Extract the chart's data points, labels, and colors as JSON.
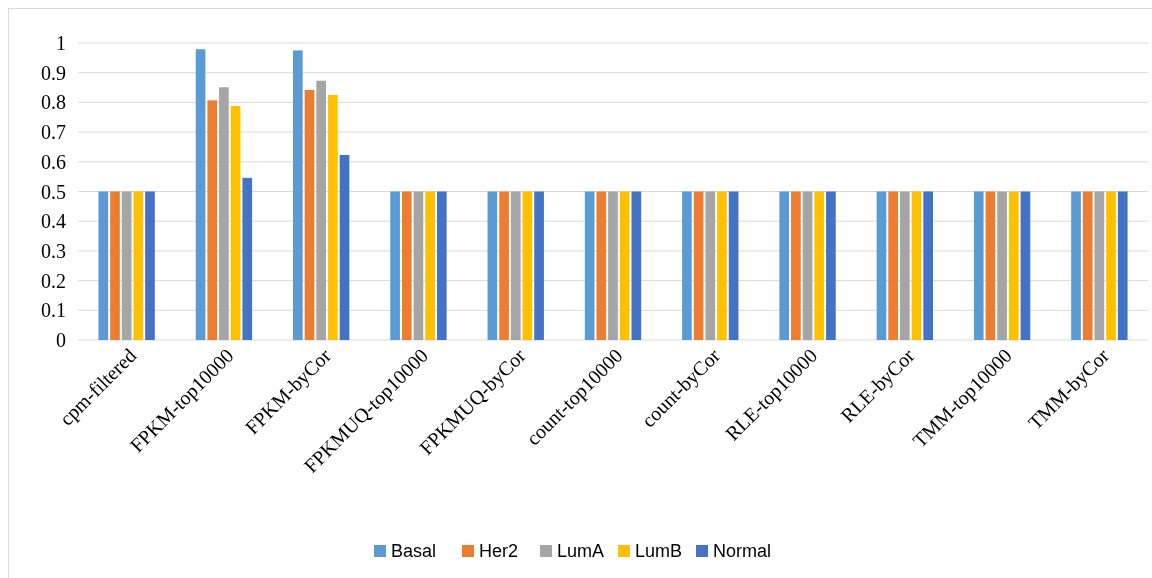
{
  "chart_data": {
    "type": "bar",
    "categories": [
      "cpm-filtered",
      "FPKM-top10000",
      "FPKM-byCor",
      "FPKMUQ-top10000",
      "FPKMUQ-byCor",
      "count-top10000",
      "count-byCor",
      "RLE-top10000",
      "RLE-byCor",
      "TMM-top10000",
      "TMM-byCor"
    ],
    "series": [
      {
        "name": "Basal",
        "color": "#5b9bd5",
        "values": [
          0.5,
          0.979,
          0.975,
          0.5,
          0.5,
          0.5,
          0.5,
          0.5,
          0.5,
          0.5,
          0.5
        ]
      },
      {
        "name": "Her2",
        "color": "#ed7d31",
        "values": [
          0.5,
          0.807,
          0.842,
          0.5,
          0.5,
          0.5,
          0.5,
          0.5,
          0.5,
          0.5,
          0.5
        ]
      },
      {
        "name": "LumA",
        "color": "#a5a5a5",
        "values": [
          0.5,
          0.851,
          0.873,
          0.5,
          0.5,
          0.5,
          0.5,
          0.5,
          0.5,
          0.5,
          0.5
        ]
      },
      {
        "name": "LumB",
        "color": "#ffc000",
        "values": [
          0.5,
          0.788,
          0.825,
          0.5,
          0.5,
          0.5,
          0.5,
          0.5,
          0.5,
          0.5,
          0.5
        ]
      },
      {
        "name": "Normal",
        "color": "#4472c4",
        "values": [
          0.5,
          0.546,
          0.623,
          0.5,
          0.5,
          0.5,
          0.5,
          0.5,
          0.5,
          0.5,
          0.5
        ]
      }
    ],
    "ylim": [
      0,
      1
    ],
    "yticks": [
      0,
      0.1,
      0.2,
      0.3,
      0.4,
      0.5,
      0.6,
      0.7,
      0.8,
      0.9,
      1
    ],
    "grid": "y",
    "legend": "bottom"
  }
}
